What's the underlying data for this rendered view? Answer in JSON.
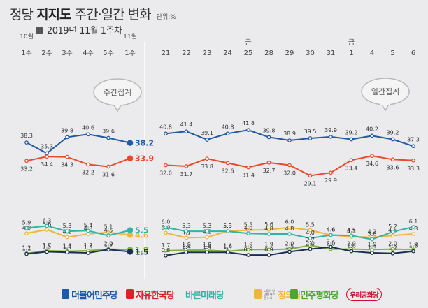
{
  "header": {
    "title_prefix": "정당",
    "title_bold": "지지도",
    "title_suffix": "주간·일간 변화",
    "unit": "단위:%",
    "subtitle": "2019년 11월 1주차"
  },
  "chart_data": {
    "type": "line",
    "weekly": {
      "label": "주간집계",
      "month_labels": [
        "10월",
        "11월"
      ],
      "categories": [
        "1주",
        "2주",
        "3주",
        "4주",
        "5주",
        "1주"
      ],
      "series": [
        {
          "name": "더불어민주당",
          "color": "#1f5aa6",
          "values": [
            38.3,
            35.3,
            39.8,
            40.6,
            39.6,
            38.2
          ]
        },
        {
          "name": "자유한국당",
          "color": "#e8492c",
          "values": [
            33.2,
            34.4,
            34.3,
            32.2,
            31.6,
            33.9
          ]
        },
        {
          "name": "정의당",
          "color": "#f0b63c",
          "values": [
            4.9,
            5.6,
            4.2,
            4.8,
            5.1,
            4.6
          ]
        },
        {
          "name": "바른미래당",
          "color": "#33b3a3",
          "values": [
            5.9,
            6.3,
            5.3,
            5.4,
            4.5,
            5.5
          ]
        },
        {
          "name": "민주평화당",
          "color": "#7cb342",
          "values": [
            1.2,
            1.7,
            1.6,
            1.7,
            2.0,
            1.9
          ]
        },
        {
          "name": "우리공화당",
          "color": "#1a2f4f",
          "values": [
            1.1,
            1.5,
            1.4,
            1.3,
            1.9,
            1.5
          ]
        }
      ]
    },
    "daily": {
      "label": "일간집계",
      "day_labels": [
        "21",
        "22",
        "23",
        "24",
        "25",
        "28",
        "29",
        "30",
        "31",
        "1",
        "4",
        "5",
        "6"
      ],
      "weekday_marks": [
        {
          "label": "금",
          "index": 4
        },
        {
          "label": "금",
          "index": 9
        }
      ],
      "series": [
        {
          "name": "더불어민주당",
          "color": "#1f5aa6",
          "values": [
            40.8,
            41.4,
            39.1,
            40.8,
            41.8,
            39.8,
            38.9,
            39.5,
            39.9,
            39.2,
            40.2,
            39.2,
            37.3
          ]
        },
        {
          "name": "자유한국당",
          "color": "#e8492c",
          "values": [
            32.0,
            31.7,
            33.8,
            32.6,
            31.4,
            32.7,
            32.0,
            29.1,
            29.9,
            33.4,
            34.6,
            33.6,
            33.3
          ]
        },
        {
          "name": "정의당",
          "color": "#f0b63c",
          "values": [
            5.0,
            4.1,
            4.2,
            5.3,
            5.5,
            5.6,
            6.0,
            5.5,
            4.6,
            4.3,
            4.2,
            4.5,
            4.8
          ]
        },
        {
          "name": "바른미래당",
          "color": "#33b3a3",
          "values": [
            6.0,
            5.3,
            5.3,
            5.3,
            4.9,
            4.8,
            4.8,
            4.0,
            4.6,
            4.5,
            3.8,
            5.2,
            6.1
          ]
        },
        {
          "name": "민주평화당",
          "color": "#7cb342",
          "values": [
            1.7,
            1.8,
            1.8,
            1.6,
            1.9,
            1.9,
            2.0,
            2.7,
            2.0,
            2.0,
            1.9,
            2.0,
            1.9
          ]
        },
        {
          "name": "우리공화당",
          "color": "#1a2f4f",
          "values": [
            0.8,
            1.4,
            1.4,
            1.4,
            0.9,
            0.9,
            1.5,
            2.0,
            2.4,
            1.6,
            1.3,
            1.2,
            1.6
          ]
        }
      ]
    }
  },
  "legend": [
    {
      "name": "더불어민주당",
      "color": "#1f5aa6",
      "icon": "democratic-party-logo"
    },
    {
      "name": "자유한국당",
      "color": "#d8232a",
      "icon": "torch-logo"
    },
    {
      "name": "바른미래당",
      "color": "#33b3a3",
      "icon": "bareun-logo"
    },
    {
      "name": "정의당",
      "color": "#f0b63c",
      "icon": "justice-party-logo",
      "small_text": "노동이 당당한 새로운 나라"
    },
    {
      "name": "민주평화당",
      "color": "#4aa832",
      "icon": "sprout-logo"
    },
    {
      "name": "우리공화당",
      "color": "#c8102e",
      "icon": "our-republican-logo"
    }
  ]
}
